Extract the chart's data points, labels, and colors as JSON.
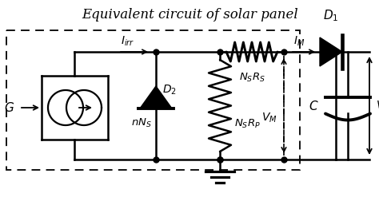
{
  "title": "Equivalent circuit of solar panel",
  "title_fontsize": 12,
  "figsize": [
    4.74,
    2.47
  ],
  "dpi": 100,
  "bg_color": "#ffffff",
  "line_color": "#000000",
  "line_width": 1.8,
  "labels": {
    "G": "$G$",
    "Iirr": "$I_{irr}$",
    "nNs": "$nN_S$",
    "D2": "$D_2$",
    "NsRs": "$N_SR_S$",
    "NsRp": "$N_SR_P$",
    "D1": "$D_1$",
    "IM": "$I_M$",
    "VM": "$V_M$",
    "C": "$C$",
    "Vc": "$V_C$"
  }
}
